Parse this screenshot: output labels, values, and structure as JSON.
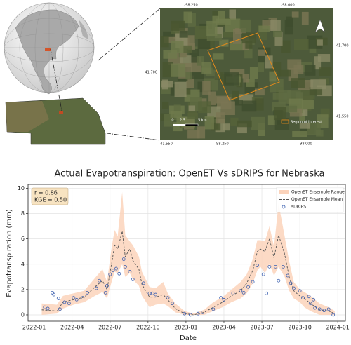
{
  "map": {
    "top_ticks": [
      "-98.250",
      "-98.000"
    ],
    "left_ticks": [
      "41.700"
    ],
    "right_ticks": [
      "41.700",
      "41.550"
    ],
    "bottom_ticks": [
      "41.550",
      "-98.250",
      "-98.000"
    ],
    "scale": [
      "0",
      "2.5",
      "5 km"
    ],
    "legend": "Region of Interest"
  },
  "chart_data": {
    "type": "line",
    "title": "Actual Evapotranspiration: OpenET Vs sDRIPS for Nebraska",
    "xlabel": "Date",
    "ylabel": "Evapotranspiration (mm)",
    "annotations": [
      "r = 0.86",
      "KGE = 0.50"
    ],
    "xlim": [
      2021.96,
      2024.05
    ],
    "ylim": [
      -0.5,
      10.3
    ],
    "xticks": [
      {
        "value": 2022.0,
        "label": "2022-01"
      },
      {
        "value": 2022.25,
        "label": "2022-04"
      },
      {
        "value": 2022.5,
        "label": "2022-07"
      },
      {
        "value": 2022.75,
        "label": "2022-10"
      },
      {
        "value": 2023.0,
        "label": "2023-01"
      },
      {
        "value": 2023.25,
        "label": "2023-04"
      },
      {
        "value": 2023.5,
        "label": "2023-07"
      },
      {
        "value": 2023.75,
        "label": "2023-10"
      },
      {
        "value": 2024.0,
        "label": "2024-01"
      }
    ],
    "yticks": [
      0,
      2,
      4,
      6,
      8,
      10
    ],
    "grid": true,
    "legend": "upper right",
    "x": [
      2022.05,
      2022.15,
      2022.19,
      2022.26,
      2022.33,
      2022.4,
      2022.45,
      2022.48,
      2022.51,
      2022.53,
      2022.55,
      2022.58,
      2022.6,
      2022.63,
      2022.65,
      2022.69,
      2022.71,
      2022.76,
      2022.8,
      2022.85,
      2022.88,
      2022.93,
      2022.99,
      2023.05,
      2023.12,
      2023.18,
      2023.24,
      2023.3,
      2023.36,
      2023.4,
      2023.44,
      2023.47,
      2023.49,
      2023.52,
      2023.55,
      2023.58,
      2023.61,
      2023.65,
      2023.68,
      2023.71,
      2023.75,
      2023.78,
      2023.82,
      2023.88,
      2023.94,
      2023.98
    ],
    "series": [
      {
        "name": "OpenET Ensemble Range",
        "type": "band",
        "color": "#fbd3bb",
        "lower": [
          0,
          0.1,
          0.5,
          0.8,
          1.0,
          1.5,
          1.8,
          1.3,
          2.6,
          3.4,
          3.3,
          4.0,
          3.0,
          3.3,
          2.8,
          2.3,
          1.5,
          0.6,
          0.8,
          0.9,
          0.7,
          0.2,
          0,
          0,
          0,
          0.3,
          0.6,
          1.0,
          1.3,
          1.7,
          2.5,
          3.5,
          3.8,
          3.3,
          4.0,
          3.1,
          3.8,
          3.0,
          1.9,
          1.3,
          1.0,
          0.6,
          0.3,
          0,
          0,
          0
        ],
        "upper": [
          0.9,
          0.8,
          1.5,
          1.7,
          1.9,
          2.9,
          3.6,
          2.6,
          5.3,
          6.7,
          6.2,
          9.7,
          6.3,
          5.8,
          5.5,
          4.6,
          3.4,
          2.2,
          2.1,
          2.6,
          1.7,
          0.9,
          0.3,
          0.1,
          0.4,
          1.0,
          1.4,
          2.0,
          2.6,
          3.2,
          4.4,
          5.9,
          5.9,
          5.8,
          7.0,
          5.4,
          8.8,
          6.2,
          4.2,
          2.6,
          2.0,
          1.8,
          1.5,
          0.9,
          0.6,
          0.3
        ]
      },
      {
        "name": "OpenET Ensemble Mean",
        "type": "line",
        "dashed": true,
        "color": "#555555",
        "values": [
          0.4,
          0.3,
          1.0,
          1.2,
          1.4,
          2.2,
          2.7,
          2.0,
          4.0,
          5.5,
          5.2,
          6.6,
          4.6,
          5.2,
          4.3,
          3.6,
          2.4,
          1.4,
          1.4,
          1.6,
          1.2,
          0.5,
          0.1,
          0,
          0.2,
          0.6,
          1.0,
          1.5,
          1.9,
          2.5,
          3.5,
          5.0,
          5.2,
          5.0,
          6.0,
          4.5,
          6.3,
          4.8,
          3.0,
          1.9,
          1.5,
          1.3,
          0.9,
          0.4,
          0.3,
          0.1
        ]
      },
      {
        "name": "sDRIPS",
        "type": "scatter",
        "color": "#3a5fb0",
        "x": [
          2022.07,
          2022.09,
          2022.12,
          2022.13,
          2022.16,
          2022.17,
          2022.2,
          2022.23,
          2022.26,
          2022.28,
          2022.32,
          2022.35,
          2022.41,
          2022.43,
          2022.47,
          2022.48,
          2022.5,
          2022.52,
          2022.54,
          2022.56,
          2022.59,
          2022.6,
          2022.63,
          2022.65,
          2022.72,
          2022.76,
          2022.78,
          2022.8,
          2022.88,
          2022.91,
          2022.99,
          2023.03,
          2023.08,
          2023.11,
          2023.18,
          2023.23,
          2023.25,
          2023.31,
          2023.36,
          2023.38,
          2023.41,
          2023.44,
          2023.47,
          2023.51,
          2023.53,
          2023.55,
          2023.59,
          2023.61,
          2023.64,
          2023.67,
          2023.69,
          2023.71,
          2023.75,
          2023.77,
          2023.81,
          2023.82,
          2023.84,
          2023.85,
          2023.88,
          2023.91,
          2023.94,
          2023.97
        ],
        "values": [
          0.6,
          0.5,
          1.75,
          1.6,
          1.3,
          0.45,
          1.0,
          0.9,
          1.35,
          1.2,
          1.35,
          1.75,
          2.1,
          2.7,
          1.75,
          2.3,
          3.2,
          3.5,
          3.65,
          3.25,
          4.4,
          3.8,
          3.4,
          2.8,
          2.5,
          1.7,
          1.7,
          1.6,
          1.35,
          0.9,
          0.1,
          0,
          0.1,
          0.2,
          0.45,
          1.35,
          1.2,
          1.7,
          1.9,
          1.75,
          2.2,
          2.6,
          3.9,
          3.2,
          1.7,
          3.8,
          3.8,
          2.7,
          3.8,
          3.1,
          2.5,
          2.1,
          1.9,
          1.35,
          1.45,
          0.9,
          1.2,
          0.55,
          0.45,
          0.35,
          0.45,
          0
        ]
      }
    ]
  }
}
